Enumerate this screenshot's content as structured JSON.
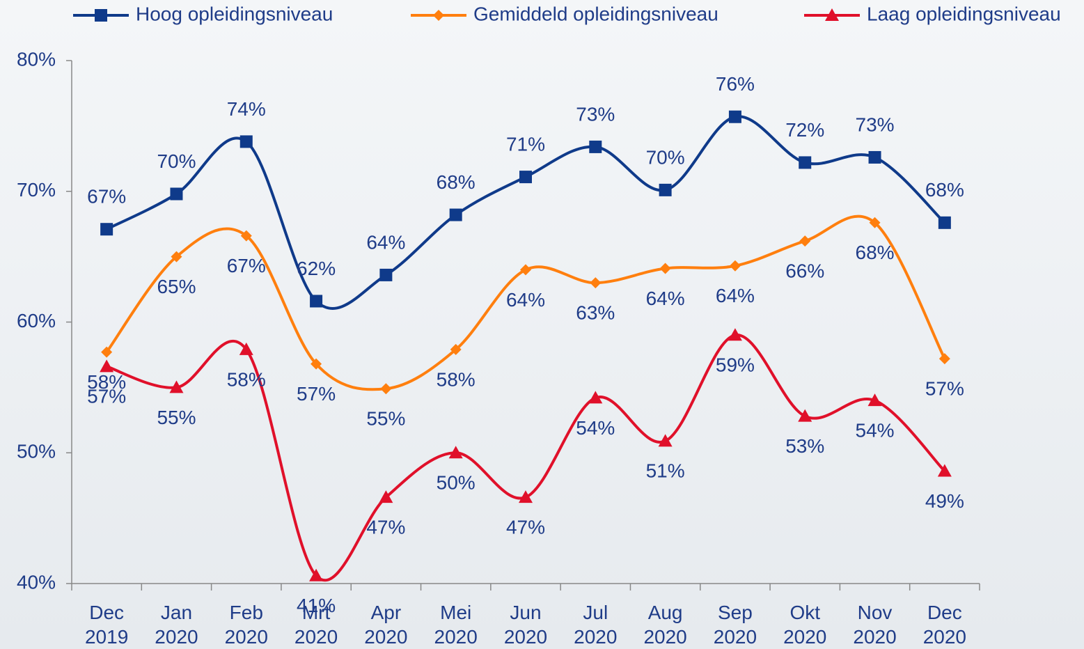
{
  "chart_data": {
    "type": "line",
    "categories": [
      "Dec 2019",
      "Jan 2020",
      "Feb 2020",
      "Mrt 2020",
      "Apr 2020",
      "Mei 2020",
      "Jun 2020",
      "Jul 2020",
      "Aug 2020",
      "Sep 2020",
      "Okt 2020",
      "Nov 2020",
      "Dec 2020"
    ],
    "ylim": [
      40,
      80
    ],
    "yticks": [
      {
        "value": 40,
        "label": "40%"
      },
      {
        "value": 50,
        "label": "50%"
      },
      {
        "value": 60,
        "label": "60%"
      },
      {
        "value": 70,
        "label": "70%"
      },
      {
        "value": 80,
        "label": "80%"
      }
    ],
    "grid": false,
    "legend": "top",
    "series": [
      {
        "name": "Hoog opleidingsniveau",
        "color": "#0f3a8a",
        "marker": "square",
        "values": [
          67.1,
          69.8,
          73.8,
          61.6,
          63.6,
          68.2,
          71.1,
          73.4,
          70.1,
          75.7,
          72.2,
          72.6,
          67.6
        ],
        "value_labels": [
          "67%",
          "70%",
          "74%",
          "62%",
          "64%",
          "68%",
          "71%",
          "73%",
          "70%",
          "76%",
          "72%",
          "73%",
          "68%"
        ]
      },
      {
        "name": "Gemiddeld opleidingsniveau",
        "color": "#ff7f0e",
        "marker": "diamond",
        "values": [
          57.7,
          65.0,
          66.6,
          56.8,
          54.9,
          57.9,
          64.0,
          63.0,
          64.1,
          64.3,
          66.2,
          67.6,
          57.2
        ],
        "value_labels": [
          "58%",
          "65%",
          "67%",
          "57%",
          "55%",
          "58%",
          "64%",
          "63%",
          "64%",
          "64%",
          "66%",
          "68%",
          "57%"
        ]
      },
      {
        "name": "Laag opleidingsniveau",
        "color": "#e0102a",
        "marker": "triangle",
        "values": [
          56.6,
          55.0,
          57.9,
          40.6,
          46.6,
          50.0,
          46.6,
          54.2,
          50.9,
          59.0,
          52.8,
          54.0,
          48.6
        ],
        "value_labels": [
          "57%",
          "55%",
          "58%",
          "41%",
          "47%",
          "50%",
          "47%",
          "54%",
          "51%",
          "59%",
          "53%",
          "54%",
          "49%"
        ]
      }
    ]
  }
}
